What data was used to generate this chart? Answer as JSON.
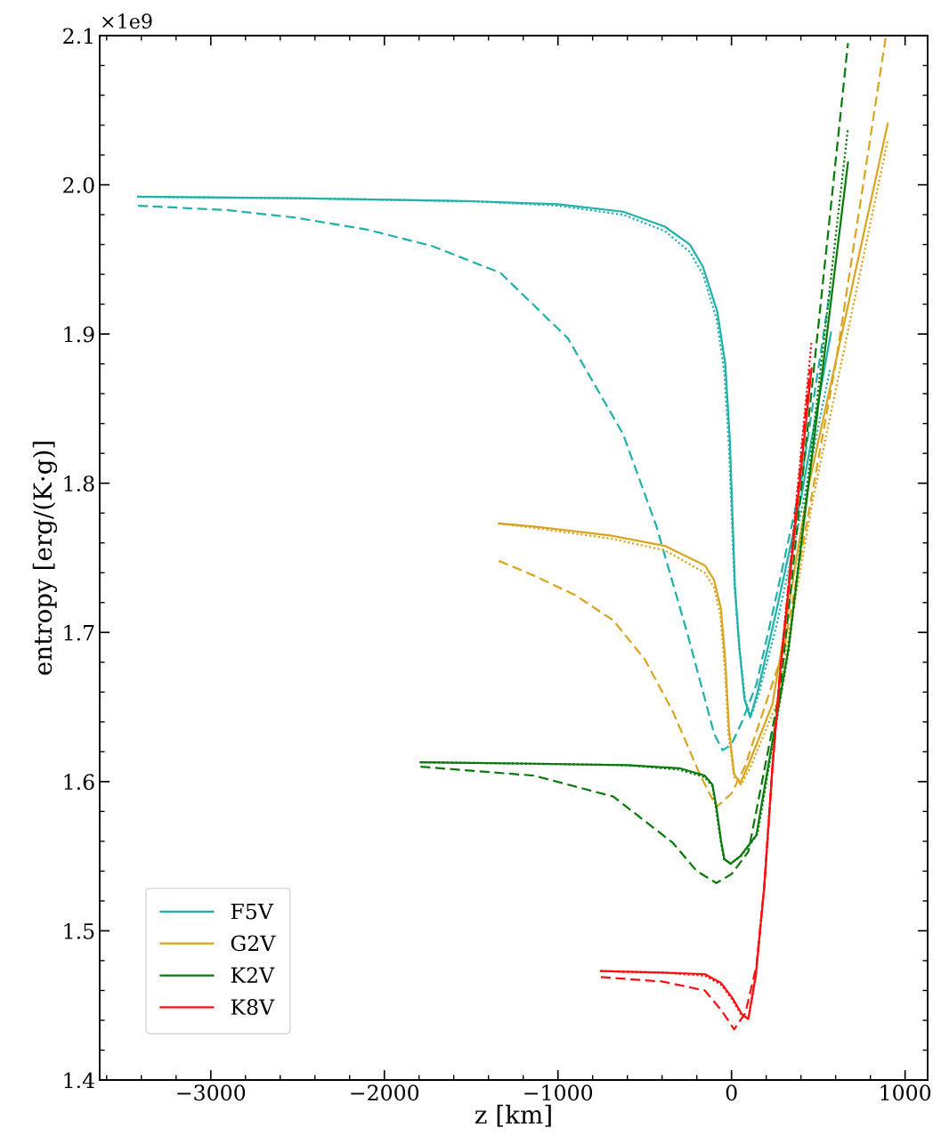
{
  "chart_data": {
    "type": "line",
    "xlabel": "z [km]",
    "ylabel": "entropy [erg/(K·g)]",
    "annotations": [
      "×1e9"
    ],
    "xlim": [
      -3640,
      1130
    ],
    "xticks": [
      -3000,
      -2000,
      -1000,
      0,
      1000
    ],
    "ylim": [
      1.4,
      2.1
    ],
    "yticks": [
      {
        "value": 1.4,
        "label": "1.4"
      },
      {
        "value": 1.5,
        "label": "1.5"
      },
      {
        "value": 1.6,
        "label": "1.6"
      },
      {
        "value": 1.7,
        "label": "1.7"
      },
      {
        "value": 1.8,
        "label": "1.8"
      },
      {
        "value": 1.9,
        "label": "1.9"
      },
      {
        "value": 2.0,
        "label": "2.0"
      },
      {
        "value": 2.1,
        "label": "2.1"
      }
    ],
    "grid": false,
    "legend": "bottom left",
    "marker": "none",
    "series": [
      {
        "name": "F5V",
        "color": "#20b2aa",
        "line_style": "solid",
        "x": [
          -3420,
          -2500,
          -1500,
          -1000,
          -625,
          -384,
          -240,
          -164,
          -82,
          -36,
          -10,
          5,
          20,
          45,
          75,
          108,
          150,
          250,
          400,
          573
        ],
        "values": [
          1.992,
          1.991,
          1.989,
          1.987,
          1.982,
          1.972,
          1.96,
          1.945,
          1.915,
          1.88,
          1.83,
          1.78,
          1.73,
          1.69,
          1.655,
          1.643,
          1.66,
          1.71,
          1.79,
          1.901
        ]
      },
      {
        "color": "#20b2aa",
        "line_style": "dotted",
        "x": [
          -3420,
          -2500,
          -1500,
          -1000,
          -625,
          -384,
          -240,
          -164,
          -86,
          -42,
          -15,
          2,
          18,
          45,
          78,
          112,
          160,
          260,
          400,
          568
        ],
        "values": [
          1.992,
          1.991,
          1.989,
          1.986,
          1.98,
          1.969,
          1.955,
          1.94,
          1.91,
          1.875,
          1.825,
          1.775,
          1.73,
          1.69,
          1.655,
          1.644,
          1.66,
          1.705,
          1.78,
          1.877
        ]
      },
      {
        "color": "#20b2aa",
        "line_style": "dashed",
        "x": [
          -3420,
          -2900,
          -2514,
          -2100,
          -1726,
          -1331,
          -942,
          -625,
          -435,
          -256,
          -164,
          -100,
          -51,
          0,
          60,
          143,
          250,
          400,
          568
        ],
        "values": [
          1.986,
          1.983,
          1.978,
          1.97,
          1.959,
          1.941,
          1.897,
          1.833,
          1.772,
          1.7,
          1.66,
          1.632,
          1.621,
          1.625,
          1.64,
          1.665,
          1.72,
          1.8,
          1.929
        ]
      },
      {
        "name": "G2V",
        "color": "#daa520",
        "line_style": "solid",
        "x": [
          -1341,
          -1137,
          -700,
          -384,
          -154,
          -100,
          -61,
          -35,
          -15,
          15,
          51,
          100,
          236,
          440,
          900
        ],
        "values": [
          1.773,
          1.771,
          1.765,
          1.758,
          1.745,
          1.735,
          1.716,
          1.68,
          1.636,
          1.605,
          1.599,
          1.612,
          1.652,
          1.796,
          2.041
        ]
      },
      {
        "color": "#daa520",
        "line_style": "dotted",
        "x": [
          -1341,
          -1137,
          -700,
          -384,
          -154,
          -100,
          -65,
          -38,
          -18,
          15,
          55,
          110,
          260,
          470,
          900
        ],
        "values": [
          1.773,
          1.77,
          1.763,
          1.755,
          1.74,
          1.73,
          1.712,
          1.675,
          1.632,
          1.603,
          1.598,
          1.61,
          1.652,
          1.79,
          2.03
        ]
      },
      {
        "color": "#daa520",
        "line_style": "dashed",
        "x": [
          -1341,
          -1137,
          -900,
          -681,
          -500,
          -338,
          -179,
          -87,
          0,
          77,
          302,
          600,
          890
        ],
        "values": [
          1.748,
          1.738,
          1.725,
          1.708,
          1.682,
          1.647,
          1.604,
          1.583,
          1.592,
          1.61,
          1.689,
          1.88,
          2.1
        ]
      },
      {
        "name": "K2V",
        "color": "#0a7a0a",
        "line_style": "solid",
        "x": [
          -1792,
          -1137,
          -600,
          -300,
          -154,
          -110,
          -87,
          -60,
          -41,
          -5,
          50,
          143,
          328,
          671
        ],
        "values": [
          1.613,
          1.612,
          1.611,
          1.609,
          1.604,
          1.598,
          1.583,
          1.56,
          1.548,
          1.545,
          1.55,
          1.564,
          1.689,
          2.015
        ]
      },
      {
        "color": "#0a7a0a",
        "line_style": "dotted",
        "x": [
          -1792,
          -1137,
          -600,
          -300,
          -154,
          -110,
          -90,
          -62,
          -43,
          -5,
          55,
          150,
          330,
          671
        ],
        "values": [
          1.613,
          1.612,
          1.611,
          1.608,
          1.603,
          1.597,
          1.582,
          1.56,
          1.548,
          1.545,
          1.55,
          1.565,
          1.689,
          2.038
        ]
      },
      {
        "color": "#0a7a0a",
        "line_style": "dashed",
        "x": [
          -1792,
          -1137,
          -681,
          -338,
          -200,
          -87,
          0,
          97,
          282,
          671
        ],
        "values": [
          1.61,
          1.604,
          1.59,
          1.559,
          1.54,
          1.532,
          1.538,
          1.553,
          1.663,
          2.095
        ]
      },
      {
        "name": "K8V",
        "color": "#ff1010",
        "line_style": "solid",
        "x": [
          -753,
          -400,
          -154,
          -60,
          5,
          60,
          97,
          140,
          189,
          236,
          282,
          461
        ],
        "values": [
          1.473,
          1.472,
          1.471,
          1.465,
          1.455,
          1.444,
          1.441,
          1.47,
          1.53,
          1.61,
          1.676,
          1.877
        ]
      },
      {
        "color": "#ff1010",
        "line_style": "dotted",
        "x": [
          -753,
          -400,
          -154,
          -60,
          5,
          60,
          97,
          140,
          189,
          236,
          282,
          461
        ],
        "values": [
          1.473,
          1.472,
          1.47,
          1.464,
          1.454,
          1.443,
          1.441,
          1.47,
          1.53,
          1.61,
          1.676,
          1.895
        ]
      },
      {
        "color": "#ff1010",
        "line_style": "dashed",
        "x": [
          -753,
          -400,
          -154,
          -60,
          15,
          80,
          143,
          189,
          236,
          282,
          451
        ],
        "values": [
          1.469,
          1.466,
          1.46,
          1.447,
          1.434,
          1.445,
          1.476,
          1.53,
          1.61,
          1.676,
          1.876
        ]
      }
    ]
  }
}
